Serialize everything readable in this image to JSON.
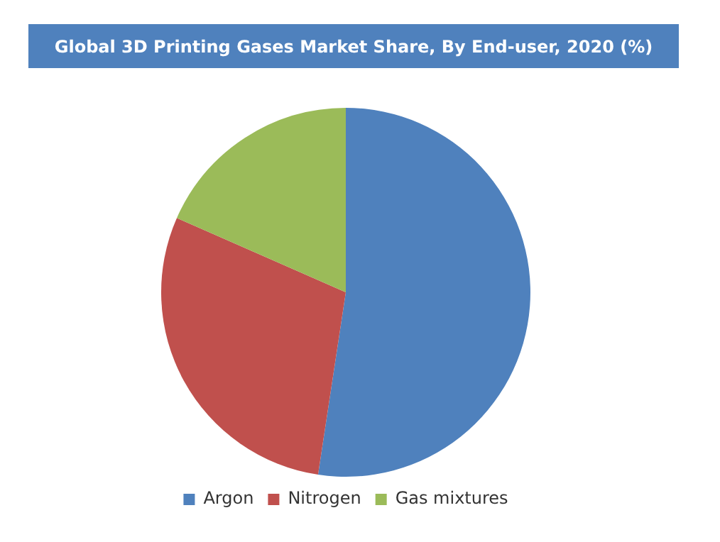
{
  "chart_data": {
    "type": "pie",
    "title": "Global 3D Printing Gases Market Share, By End-user, 2020 (%)",
    "categories": [
      "Argon",
      "Nitrogen",
      "Gas mixtures"
    ],
    "values": [
      52.4,
      29.2,
      18.4
    ],
    "colors": [
      "#4f81bd",
      "#c0504d",
      "#9bbb59"
    ],
    "legend": "bottom"
  }
}
